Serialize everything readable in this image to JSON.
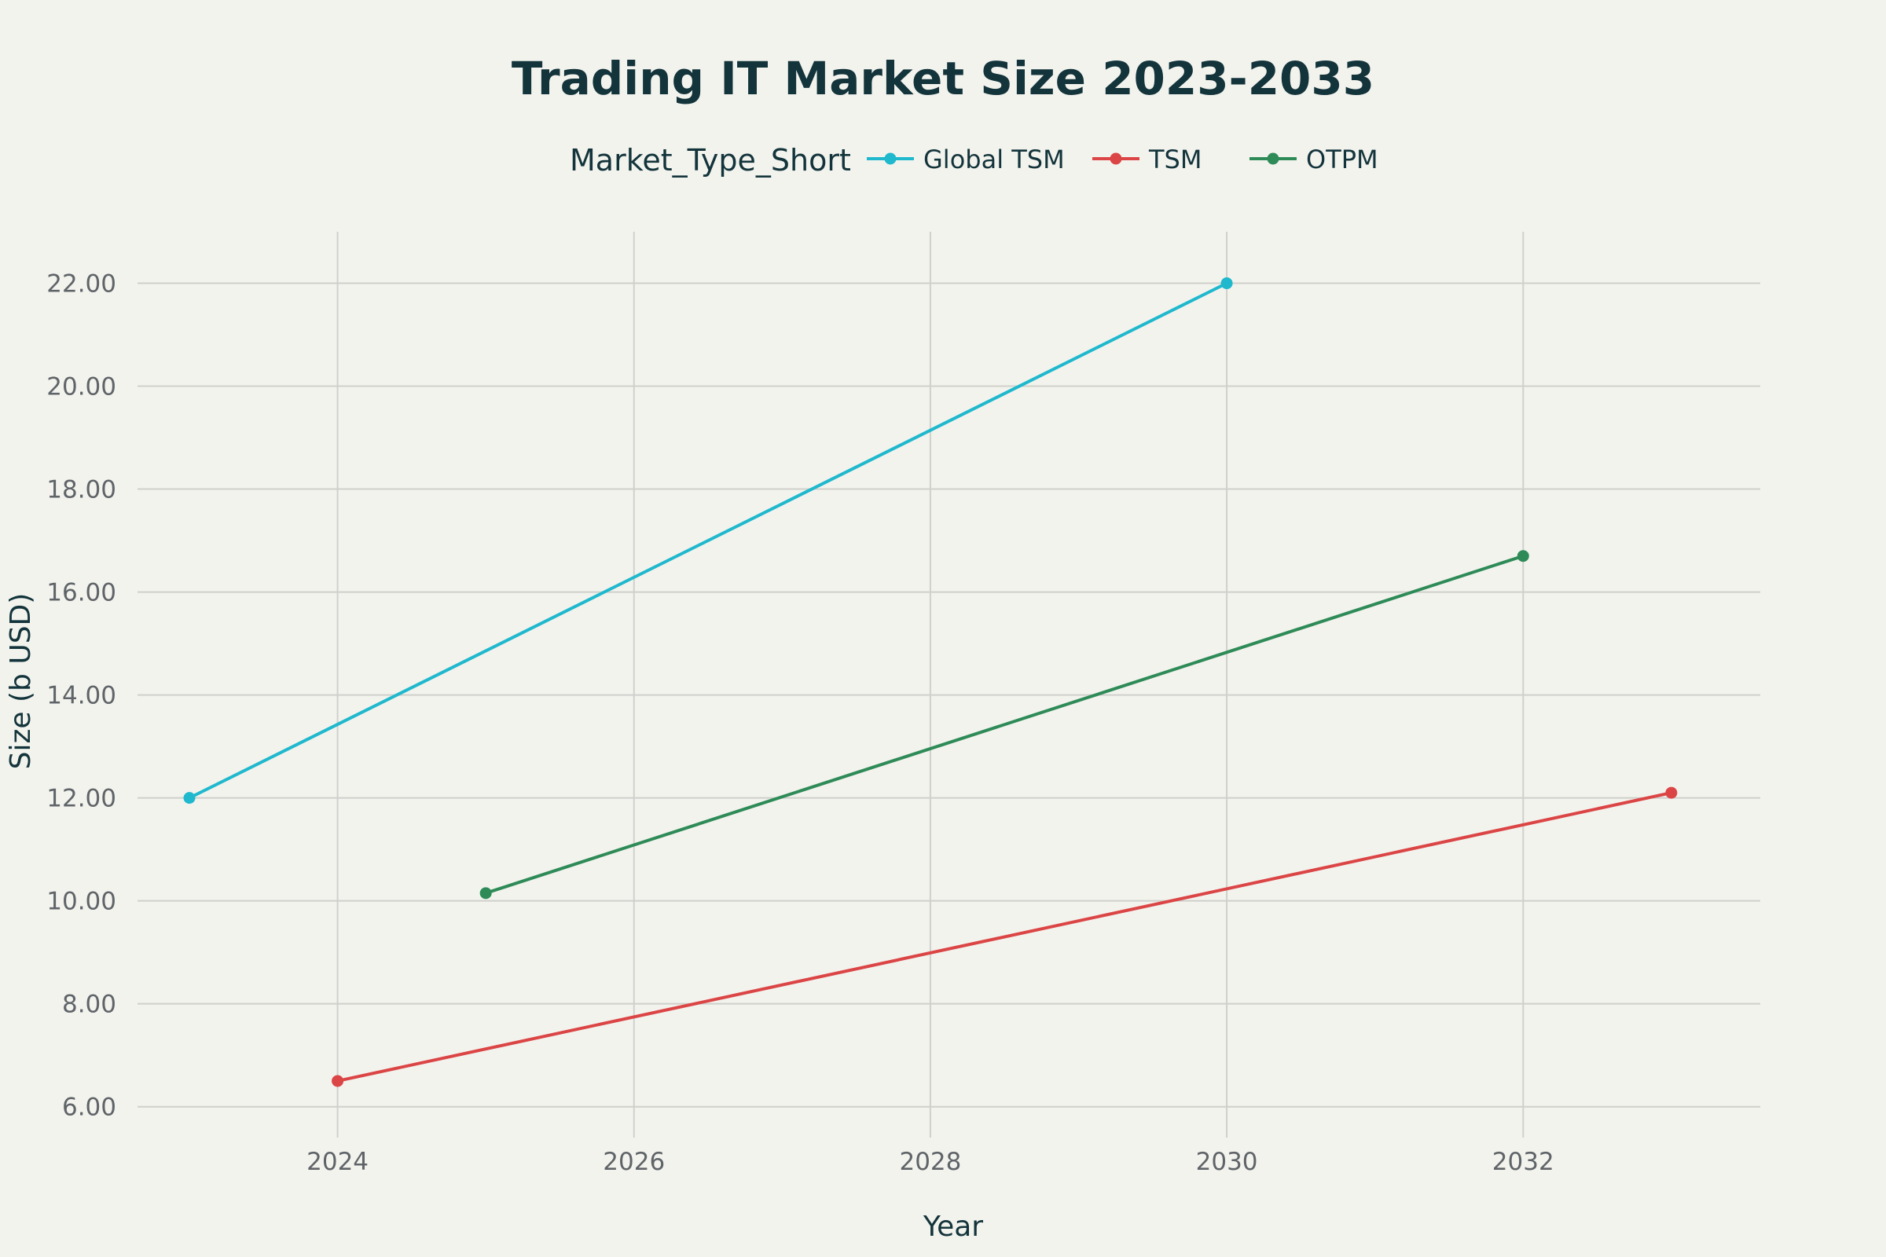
{
  "chart_data": {
    "type": "line",
    "title": "Trading IT Market Size 2023-2033",
    "xlabel": "Year",
    "ylabel": "Size (b USD)",
    "legend_title": "Market_Type_Short",
    "legend_position": "top-center",
    "grid": true,
    "xlim": [
      2022.65,
      2033.6
    ],
    "ylim": [
      5.4,
      23.0
    ],
    "x_ticks": [
      2024,
      2026,
      2028,
      2030,
      2032
    ],
    "y_ticks": [
      6,
      8,
      10,
      12,
      14,
      16,
      18,
      20,
      22
    ],
    "y_tick_labels": [
      "6.00",
      "8.00",
      "10.00",
      "12.00",
      "14.00",
      "16.00",
      "18.00",
      "20.00",
      "22.00"
    ],
    "series": [
      {
        "name": "Global TSM",
        "color": "#1fb8cd",
        "points": [
          {
            "x": 2023,
            "y": 12.0
          },
          {
            "x": 2030,
            "y": 22.0
          }
        ]
      },
      {
        "name": "TSM",
        "color": "#db4545",
        "points": [
          {
            "x": 2024,
            "y": 6.5
          },
          {
            "x": 2033,
            "y": 12.1
          }
        ]
      },
      {
        "name": "OTPM",
        "color": "#2e8b57",
        "points": [
          {
            "x": 2025,
            "y": 10.15
          },
          {
            "x": 2032,
            "y": 16.7
          }
        ]
      }
    ]
  }
}
